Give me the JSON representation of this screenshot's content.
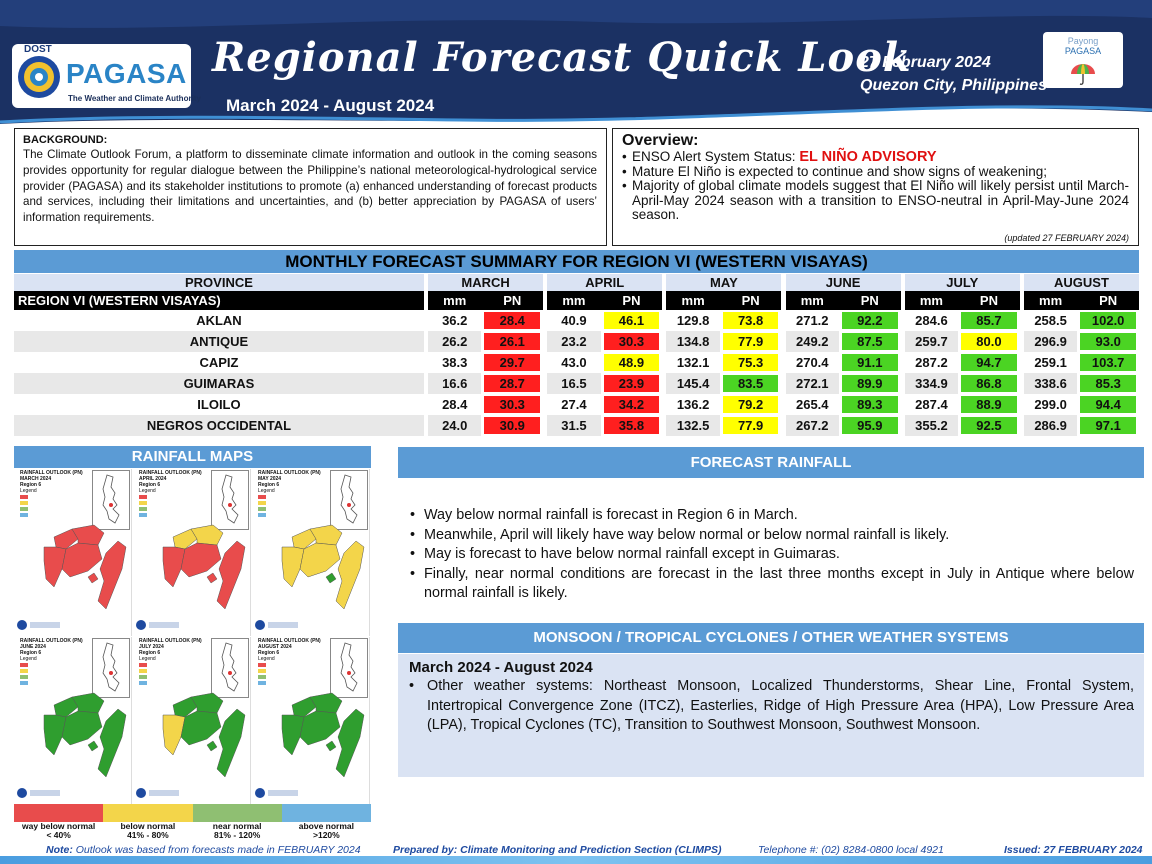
{
  "header": {
    "dost_label": "DOST",
    "agency_name": "PAGASA",
    "agency_tagline": "The Weather and Climate Authority",
    "title": "Regional Forecast Quick Look",
    "period": "March 2024 - August 2024",
    "date": "27 February 2024",
    "place": "Quezon City, Philippines",
    "payong_top": "Payong",
    "payong_name": "PAGASA",
    "colors": {
      "navy": "#1b3163",
      "accent": "#5b9bd5"
    }
  },
  "background": {
    "heading": "BACKGROUND:",
    "text": "The Climate Outlook Forum, a platform to disseminate climate information and outlook in the coming seasons provides opportunity for regular dialogue between the Philippine’s national meteorological-hydrological service provider (PAGASA) and its stakeholder institutions to promote (a) enhanced understanding of forecast products and services, including their limitations and uncertainties, and (b) better appreciation by PAGASA of users’ information requirements."
  },
  "overview": {
    "heading": "Overview:",
    "status_label": "ENSO Alert System Status: ",
    "status_value": "EL NIÑO ADVISORY",
    "bullet2": "Mature El Niño is expected to continue and show signs of weakening;",
    "bullet3": "Majority of global climate models suggest that El Niño will likely persist until March-April-May 2024 season with a transition to ENSO-neutral in April-May-June 2024 season.",
    "updated": "(updated 27 FEBRUARY 2024)"
  },
  "summary": {
    "title": "MONTHLY FORECAST SUMMARY FOR REGION VI (WESTERN VISAYAS)",
    "province_header": "PROVINCE",
    "region_label": "REGION VI (WESTERN VISAYAS)",
    "mm_label": "mm",
    "pn_label": "PN",
    "months": [
      "MARCH",
      "APRIL",
      "MAY",
      "JUNE",
      "JULY",
      "AUGUST"
    ],
    "rows": [
      {
        "province": "AKLAN",
        "mm": [
          "36.2",
          "40.9",
          "129.8",
          "271.2",
          "284.6",
          "258.5"
        ],
        "pn": [
          "28.4",
          "46.1",
          "73.8",
          "92.2",
          "85.7",
          "102.0"
        ],
        "class": [
          "way below normal",
          "below normal",
          "below normal",
          "near normal",
          "near normal",
          "near normal"
        ]
      },
      {
        "province": "ANTIQUE",
        "mm": [
          "26.2",
          "23.2",
          "134.8",
          "249.2",
          "259.7",
          "296.9"
        ],
        "pn": [
          "26.1",
          "30.3",
          "77.9",
          "87.5",
          "80.0",
          "93.0"
        ],
        "class": [
          "way below normal",
          "way below normal",
          "below normal",
          "near normal",
          "below normal",
          "near normal"
        ]
      },
      {
        "province": "CAPIZ",
        "mm": [
          "38.3",
          "43.0",
          "132.1",
          "270.4",
          "287.2",
          "259.1"
        ],
        "pn": [
          "29.7",
          "48.9",
          "75.3",
          "91.1",
          "94.7",
          "103.7"
        ],
        "class": [
          "way below normal",
          "below normal",
          "below normal",
          "near normal",
          "near normal",
          "near normal"
        ]
      },
      {
        "province": "GUIMARAS",
        "mm": [
          "16.6",
          "16.5",
          "145.4",
          "272.1",
          "334.9",
          "338.6"
        ],
        "pn": [
          "28.7",
          "23.9",
          "83.5",
          "89.9",
          "86.8",
          "85.3"
        ],
        "class": [
          "way below normal",
          "way below normal",
          "near normal",
          "near normal",
          "near normal",
          "near normal"
        ]
      },
      {
        "province": "ILOILO",
        "mm": [
          "28.4",
          "27.4",
          "136.2",
          "265.4",
          "287.4",
          "299.0"
        ],
        "pn": [
          "30.3",
          "34.2",
          "79.2",
          "89.3",
          "88.9",
          "94.4"
        ],
        "class": [
          "way below normal",
          "way below normal",
          "below normal",
          "near normal",
          "near normal",
          "near normal"
        ]
      },
      {
        "province": "NEGROS OCCIDENTAL",
        "mm": [
          "24.0",
          "31.5",
          "132.5",
          "267.2",
          "355.2",
          "286.9"
        ],
        "pn": [
          "30.9",
          "35.8",
          "77.9",
          "95.9",
          "92.5",
          "97.1"
        ],
        "class": [
          "way below normal",
          "way below normal",
          "below normal",
          "near normal",
          "near normal",
          "near normal"
        ]
      }
    ],
    "class_colors": {
      "way below normal": "#ff1f1f",
      "below normal": "#ffff00",
      "near normal": "#4bd423",
      "above normal": "#2e7fd6"
    }
  },
  "maps": {
    "title": "RAINFALL MAPS",
    "panels": [
      {
        "title": "RAINFALL OUTLOOK (PN)",
        "month": "MARCH 2024",
        "region": "Region 6"
      },
      {
        "title": "RAINFALL OUTLOOK (PN)",
        "month": "APRIL 2024",
        "region": "Region 6"
      },
      {
        "title": "RAINFALL OUTLOOK (PN)",
        "month": "MAY 2024",
        "region": "Region 6"
      },
      {
        "title": "RAINFALL OUTLOOK (PN)",
        "month": "JUNE 2024",
        "region": "Region 6"
      },
      {
        "title": "RAINFALL OUTLOOK (PN)",
        "month": "JULY 2024",
        "region": "Region 6"
      },
      {
        "title": "RAINFALL OUTLOOK (PN)",
        "month": "AUGUST 2024",
        "region": "Region 6"
      }
    ],
    "panel_legend_label": "Legend",
    "legend": [
      {
        "label": "way below normal",
        "range": "< 40%",
        "color": "#e84c4c"
      },
      {
        "label": "below normal",
        "range": "41%  -  80%",
        "color": "#f3d54a"
      },
      {
        "label": "near normal",
        "range": "81% - 120%",
        "color": "#8fbf72"
      },
      {
        "label": "above normal",
        "range": ">120%",
        "color": "#6fb3e0"
      }
    ]
  },
  "forecast_rainfall": {
    "title": "FORECAST RAINFALL",
    "bullets": [
      "Way below normal rainfall is forecast in Region 6 in March.",
      "Meanwhile, April will likely have way below normal or below normal rainfall is likely.",
      "May is forecast to have below normal rainfall except in Guimaras.",
      "Finally, near normal conditions are forecast in the last three months except in July in Antique where below normal rainfall is likely."
    ]
  },
  "monsoon": {
    "title": "MONSOON  /  TROPICAL CYCLONES / OTHER WEATHER SYSTEMS",
    "period": "March 2024 - August 2024",
    "bullet": "Other weather systems: Northeast Monsoon, Localized Thunderstorms, Shear Line, Frontal System, Intertropical Convergence Zone (ITCZ), Easterlies, Ridge of High Pressure Area (HPA), Low Pressure Area (LPA), Tropical Cyclones (TC), Transition to Southwest Monsoon, Southwest Monsoon."
  },
  "footer": {
    "note_label": "Note:",
    "note": " Outlook was based from forecasts made in FEBRUARY 2024",
    "prepared": "Prepared by: Climate Monitoring and Prediction Section (CLIMPS)",
    "telephone": "Telephone #: (02) 8284-0800 local 4921",
    "issued": "Issued: 27 FEBRUARY 2024"
  }
}
